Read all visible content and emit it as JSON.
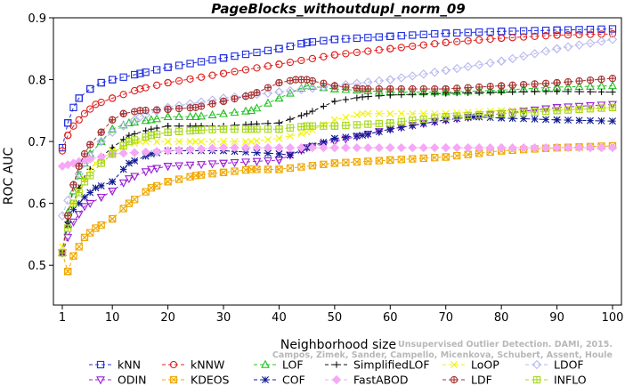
{
  "chart_data": {
    "type": "line",
    "title": "PageBlocks_withoutdupl_norm_09",
    "xlabel": "Neighborhood size",
    "ylabel": "ROC AUC",
    "xlim": [
      1,
      100
    ],
    "ylim": [
      0.45,
      0.9
    ],
    "x_ticks": [
      "1",
      "10",
      "20",
      "30",
      "40",
      "50",
      "60",
      "70",
      "80",
      "90",
      "100"
    ],
    "y_ticks": [
      "0.5",
      "0.6",
      "0.7",
      "0.8",
      "0.9"
    ],
    "legend_position": "bottom",
    "watermark": "Unsupervised Outlier Detection. DAMI, 2015. Campos, Zimek, Sander, Campello, Micenkova, Schubert, Assent, Houle",
    "series": [
      {
        "name": "kNN",
        "color": "#1f2de0",
        "marker": "square",
        "points": [
          [
            1,
            0.69
          ],
          [
            2,
            0.73
          ],
          [
            3,
            0.755
          ],
          [
            4,
            0.77
          ],
          [
            6,
            0.785
          ],
          [
            8,
            0.795
          ],
          [
            10,
            0.8
          ],
          [
            15,
            0.81
          ],
          [
            20,
            0.82
          ],
          [
            30,
            0.835
          ],
          [
            40,
            0.85
          ],
          [
            45,
            0.86
          ],
          [
            50,
            0.865
          ],
          [
            60,
            0.87
          ],
          [
            70,
            0.875
          ],
          [
            80,
            0.878
          ],
          [
            90,
            0.88
          ],
          [
            100,
            0.882
          ]
        ]
      },
      {
        "name": "kNNW",
        "color": "#e02020",
        "marker": "circle",
        "points": [
          [
            1,
            0.685
          ],
          [
            2,
            0.71
          ],
          [
            3,
            0.725
          ],
          [
            5,
            0.745
          ],
          [
            7,
            0.76
          ],
          [
            10,
            0.77
          ],
          [
            15,
            0.785
          ],
          [
            20,
            0.795
          ],
          [
            30,
            0.81
          ],
          [
            40,
            0.825
          ],
          [
            50,
            0.84
          ],
          [
            60,
            0.85
          ],
          [
            70,
            0.86
          ],
          [
            80,
            0.867
          ],
          [
            90,
            0.872
          ],
          [
            100,
            0.874
          ]
        ]
      },
      {
        "name": "LOF",
        "color": "#22c122",
        "marker": "triangle-up",
        "points": [
          [
            1,
            0.52
          ],
          [
            2,
            0.585
          ],
          [
            3,
            0.62
          ],
          [
            4,
            0.645
          ],
          [
            5,
            0.665
          ],
          [
            6,
            0.68
          ],
          [
            8,
            0.7
          ],
          [
            10,
            0.72
          ],
          [
            13,
            0.73
          ],
          [
            17,
            0.735
          ],
          [
            20,
            0.74
          ],
          [
            25,
            0.74
          ],
          [
            30,
            0.745
          ],
          [
            35,
            0.75
          ],
          [
            40,
            0.77
          ],
          [
            45,
            0.79
          ],
          [
            50,
            0.785
          ],
          [
            60,
            0.78
          ],
          [
            70,
            0.78
          ],
          [
            80,
            0.783
          ],
          [
            90,
            0.788
          ],
          [
            100,
            0.79
          ]
        ]
      },
      {
        "name": "SimplifiedLOF",
        "color": "#111111",
        "marker": "plus",
        "points": [
          [
            1,
            0.52
          ],
          [
            2,
            0.57
          ],
          [
            3,
            0.6
          ],
          [
            4,
            0.625
          ],
          [
            5,
            0.64
          ],
          [
            6,
            0.655
          ],
          [
            8,
            0.675
          ],
          [
            10,
            0.69
          ],
          [
            13,
            0.71
          ],
          [
            17,
            0.72
          ],
          [
            20,
            0.725
          ],
          [
            25,
            0.725
          ],
          [
            30,
            0.725
          ],
          [
            35,
            0.728
          ],
          [
            40,
            0.73
          ],
          [
            45,
            0.745
          ],
          [
            50,
            0.765
          ],
          [
            55,
            0.772
          ],
          [
            60,
            0.775
          ],
          [
            70,
            0.778
          ],
          [
            80,
            0.78
          ],
          [
            90,
            0.781
          ],
          [
            100,
            0.78
          ]
        ]
      },
      {
        "name": "LoOP",
        "color": "#f2f20a",
        "marker": "x",
        "points": [
          [
            1,
            0.53
          ],
          [
            3,
            0.6
          ],
          [
            5,
            0.64
          ],
          [
            7,
            0.665
          ],
          [
            10,
            0.685
          ],
          [
            15,
            0.7
          ],
          [
            20,
            0.7
          ],
          [
            25,
            0.7
          ],
          [
            30,
            0.7
          ],
          [
            35,
            0.7
          ],
          [
            40,
            0.705
          ],
          [
            45,
            0.715
          ],
          [
            50,
            0.735
          ],
          [
            55,
            0.745
          ],
          [
            60,
            0.745
          ],
          [
            70,
            0.745
          ],
          [
            80,
            0.75
          ],
          [
            90,
            0.752
          ],
          [
            100,
            0.755
          ]
        ]
      },
      {
        "name": "LDOF",
        "color": "#b8b8ee",
        "marker": "diamond",
        "points": [
          [
            1,
            0.58
          ],
          [
            3,
            0.63
          ],
          [
            5,
            0.665
          ],
          [
            8,
            0.7
          ],
          [
            10,
            0.715
          ],
          [
            15,
            0.74
          ],
          [
            20,
            0.755
          ],
          [
            30,
            0.77
          ],
          [
            40,
            0.78
          ],
          [
            50,
            0.79
          ],
          [
            60,
            0.8
          ],
          [
            70,
            0.815
          ],
          [
            80,
            0.83
          ],
          [
            90,
            0.85
          ],
          [
            100,
            0.865
          ]
        ]
      },
      {
        "name": "ODIN",
        "color": "#9b1fd6",
        "marker": "triangle-down",
        "points": [
          [
            1,
            0.52
          ],
          [
            3,
            0.57
          ],
          [
            5,
            0.595
          ],
          [
            8,
            0.61
          ],
          [
            10,
            0.62
          ],
          [
            13,
            0.64
          ],
          [
            17,
            0.655
          ],
          [
            20,
            0.66
          ],
          [
            30,
            0.665
          ],
          [
            40,
            0.67
          ],
          [
            45,
            0.69
          ],
          [
            50,
            0.7
          ],
          [
            60,
            0.72
          ],
          [
            70,
            0.735
          ],
          [
            80,
            0.745
          ],
          [
            90,
            0.755
          ],
          [
            100,
            0.76
          ]
        ]
      },
      {
        "name": "KDEOS",
        "color": "#f0a800",
        "marker": "square-x",
        "points": [
          [
            1,
            0.52
          ],
          [
            2,
            0.49
          ],
          [
            3,
            0.515
          ],
          [
            5,
            0.545
          ],
          [
            7,
            0.56
          ],
          [
            10,
            0.575
          ],
          [
            13,
            0.6
          ],
          [
            17,
            0.625
          ],
          [
            20,
            0.635
          ],
          [
            25,
            0.645
          ],
          [
            30,
            0.65
          ],
          [
            35,
            0.655
          ],
          [
            40,
            0.655
          ],
          [
            50,
            0.665
          ],
          [
            60,
            0.67
          ],
          [
            70,
            0.675
          ],
          [
            80,
            0.685
          ],
          [
            90,
            0.69
          ],
          [
            100,
            0.693
          ]
        ]
      },
      {
        "name": "COF",
        "color": "#101c90",
        "marker": "asterisk",
        "points": [
          [
            1,
            0.52
          ],
          [
            2,
            0.565
          ],
          [
            3,
            0.59
          ],
          [
            5,
            0.61
          ],
          [
            7,
            0.625
          ],
          [
            10,
            0.635
          ],
          [
            13,
            0.665
          ],
          [
            17,
            0.68
          ],
          [
            20,
            0.685
          ],
          [
            30,
            0.685
          ],
          [
            40,
            0.68
          ],
          [
            42,
            0.678
          ],
          [
            45,
            0.69
          ],
          [
            50,
            0.705
          ],
          [
            55,
            0.71
          ],
          [
            60,
            0.72
          ],
          [
            70,
            0.735
          ],
          [
            75,
            0.74
          ],
          [
            80,
            0.738
          ],
          [
            90,
            0.735
          ],
          [
            100,
            0.733
          ]
        ]
      },
      {
        "name": "FastABOD",
        "color": "#f5a8f5",
        "marker": "diamond-filled",
        "points": [
          [
            1,
            0.66
          ],
          [
            3,
            0.665
          ],
          [
            5,
            0.67
          ],
          [
            8,
            0.675
          ],
          [
            10,
            0.68
          ],
          [
            20,
            0.685
          ],
          [
            30,
            0.69
          ],
          [
            40,
            0.69
          ],
          [
            50,
            0.69
          ],
          [
            60,
            0.69
          ],
          [
            70,
            0.69
          ],
          [
            80,
            0.69
          ],
          [
            90,
            0.69
          ],
          [
            100,
            0.69
          ]
        ]
      },
      {
        "name": "LDF",
        "color": "#a83232",
        "marker": "circle-plus",
        "points": [
          [
            1,
            0.52
          ],
          [
            2,
            0.58
          ],
          [
            3,
            0.63
          ],
          [
            4,
            0.66
          ],
          [
            5,
            0.68
          ],
          [
            6,
            0.695
          ],
          [
            8,
            0.715
          ],
          [
            10,
            0.735
          ],
          [
            12,
            0.745
          ],
          [
            15,
            0.75
          ],
          [
            20,
            0.752
          ],
          [
            25,
            0.755
          ],
          [
            30,
            0.765
          ],
          [
            35,
            0.775
          ],
          [
            40,
            0.795
          ],
          [
            43,
            0.8
          ],
          [
            45,
            0.8
          ],
          [
            50,
            0.79
          ],
          [
            55,
            0.785
          ],
          [
            60,
            0.785
          ],
          [
            70,
            0.785
          ],
          [
            80,
            0.79
          ],
          [
            90,
            0.795
          ],
          [
            100,
            0.802
          ]
        ]
      },
      {
        "name": "INFLO",
        "color": "#a6d81c",
        "marker": "square-plus",
        "points": [
          [
            1,
            0.52
          ],
          [
            3,
            0.6
          ],
          [
            5,
            0.635
          ],
          [
            8,
            0.665
          ],
          [
            10,
            0.68
          ],
          [
            13,
            0.7
          ],
          [
            17,
            0.71
          ],
          [
            20,
            0.715
          ],
          [
            25,
            0.718
          ],
          [
            30,
            0.72
          ],
          [
            35,
            0.72
          ],
          [
            40,
            0.72
          ],
          [
            45,
            0.725
          ],
          [
            50,
            0.725
          ],
          [
            60,
            0.73
          ],
          [
            70,
            0.74
          ],
          [
            80,
            0.745
          ],
          [
            90,
            0.75
          ],
          [
            100,
            0.755
          ]
        ]
      }
    ]
  }
}
